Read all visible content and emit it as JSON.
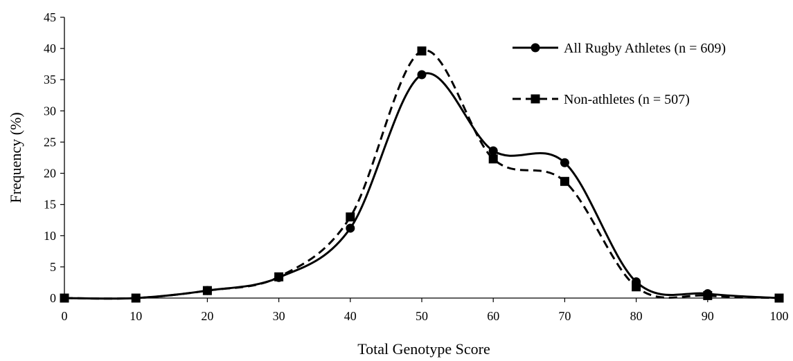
{
  "chart_data": {
    "type": "line",
    "title": "",
    "xlabel": "Total Genotype Score",
    "ylabel": "Frequency (%)",
    "x": [
      0,
      10,
      20,
      30,
      40,
      50,
      60,
      70,
      80,
      90,
      100
    ],
    "xlim": [
      0,
      100
    ],
    "ylim": [
      0,
      45
    ],
    "xticks": [
      "0",
      "10",
      "20",
      "30",
      "40",
      "50",
      "60",
      "70",
      "80",
      "90",
      "100"
    ],
    "yticks": [
      "0",
      "5",
      "10",
      "15",
      "20",
      "25",
      "30",
      "35",
      "40",
      "45"
    ],
    "grid": false,
    "legend_position": "top-right",
    "series": [
      {
        "name": "All Rugby Athletes (n = 609)",
        "marker": "circle",
        "line_style": "solid",
        "color": "#000000",
        "values": [
          0,
          0,
          1.2,
          3.3,
          11.2,
          35.8,
          23.6,
          21.7,
          2.6,
          0.7,
          0
        ]
      },
      {
        "name": "Non-athletes (n = 507)",
        "marker": "square",
        "line_style": "dashed",
        "color": "#000000",
        "values": [
          0,
          0,
          1.2,
          3.4,
          13.0,
          39.6,
          22.3,
          18.7,
          1.8,
          0.4,
          0
        ]
      }
    ]
  }
}
